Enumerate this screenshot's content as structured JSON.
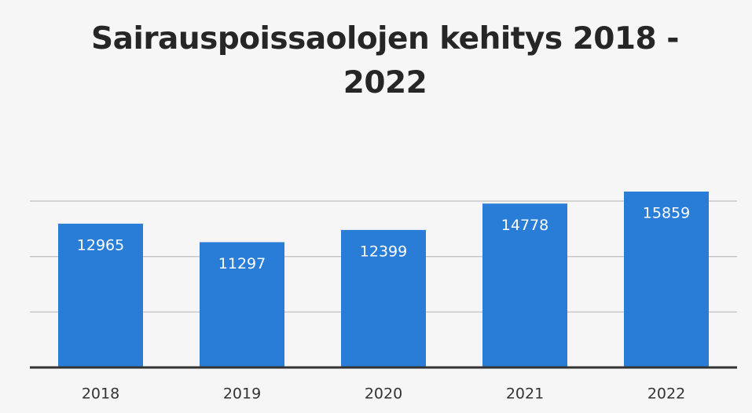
{
  "chart_data": {
    "type": "bar",
    "title": "Sairauspoissaolojen kehitys 2018 - 2022",
    "categories": [
      "2018",
      "2019",
      "2020",
      "2021",
      "2022"
    ],
    "values": [
      12965,
      11297,
      12399,
      14778,
      15859
    ],
    "color": "#2a7dd6",
    "ylim": [
      0,
      16000
    ],
    "yticks": [
      0,
      5000,
      10000,
      15000
    ],
    "grid": true
  }
}
